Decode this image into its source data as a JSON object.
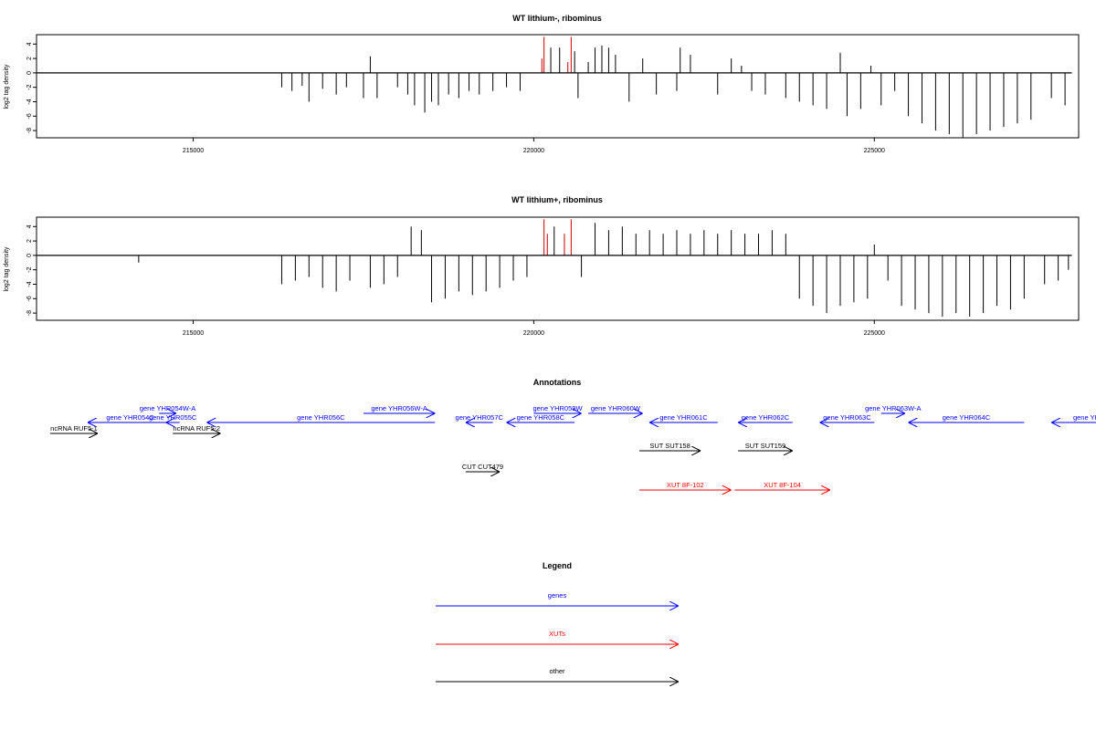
{
  "chart_data": [
    {
      "type": "bar",
      "title": "WT lithium-, ribominus",
      "ylabel": "log2 tag density",
      "xlabel": "",
      "xlim": [
        212700,
        228000
      ],
      "ylim": [
        -9,
        5.3
      ],
      "x_ticks": [
        215000,
        220000,
        225000
      ],
      "x_tick_labels": [
        "215000",
        "220000",
        "225000"
      ],
      "y_ticks": [
        4,
        2,
        0,
        -2,
        -4,
        -6,
        -8
      ],
      "y_tick_labels": [
        "4",
        "2",
        "0",
        "-2",
        "-4",
        "-6",
        "-8"
      ],
      "baseline": {
        "x": [
          212700,
          227900
        ],
        "y": 0
      },
      "highlight_color": "#d62728",
      "highlight_bars": [
        {
          "x": 220150,
          "y": 5.0
        },
        {
          "x": 220550,
          "y": 5.0
        },
        {
          "x": 220120,
          "y": 2.0
        },
        {
          "x": 220500,
          "y": 1.5
        }
      ],
      "bars": [
        {
          "x": 216300,
          "y": -2.0
        },
        {
          "x": 216450,
          "y": -2.5
        },
        {
          "x": 216600,
          "y": -1.8
        },
        {
          "x": 216700,
          "y": -4.0
        },
        {
          "x": 216900,
          "y": -2.2
        },
        {
          "x": 217100,
          "y": -3.0
        },
        {
          "x": 217250,
          "y": -2.0
        },
        {
          "x": 217500,
          "y": -3.5
        },
        {
          "x": 217600,
          "y": 2.3
        },
        {
          "x": 217700,
          "y": -3.5
        },
        {
          "x": 218000,
          "y": -2.0
        },
        {
          "x": 218150,
          "y": -3.0
        },
        {
          "x": 218250,
          "y": -4.5
        },
        {
          "x": 218400,
          "y": -5.5
        },
        {
          "x": 218500,
          "y": -4.0
        },
        {
          "x": 218600,
          "y": -4.5
        },
        {
          "x": 218750,
          "y": -3.0
        },
        {
          "x": 218900,
          "y": -3.5
        },
        {
          "x": 219050,
          "y": -2.5
        },
        {
          "x": 219200,
          "y": -3.0
        },
        {
          "x": 219400,
          "y": -2.5
        },
        {
          "x": 219600,
          "y": -2.0
        },
        {
          "x": 219800,
          "y": -2.5
        },
        {
          "x": 220250,
          "y": 3.5
        },
        {
          "x": 220380,
          "y": 3.5
        },
        {
          "x": 220600,
          "y": 3.0
        },
        {
          "x": 220650,
          "y": -3.5
        },
        {
          "x": 220800,
          "y": 1.5
        },
        {
          "x": 220900,
          "y": 3.5
        },
        {
          "x": 221000,
          "y": 3.8
        },
        {
          "x": 221100,
          "y": 3.5
        },
        {
          "x": 221200,
          "y": 2.5
        },
        {
          "x": 221400,
          "y": -4.0
        },
        {
          "x": 221600,
          "y": 2.0
        },
        {
          "x": 221800,
          "y": -3.0
        },
        {
          "x": 222100,
          "y": -2.5
        },
        {
          "x": 222150,
          "y": 3.5
        },
        {
          "x": 222300,
          "y": 2.5
        },
        {
          "x": 222700,
          "y": -3.0
        },
        {
          "x": 222900,
          "y": 2.0
        },
        {
          "x": 223050,
          "y": 1.0
        },
        {
          "x": 223200,
          "y": -2.5
        },
        {
          "x": 223400,
          "y": -3.0
        },
        {
          "x": 223700,
          "y": -3.5
        },
        {
          "x": 223900,
          "y": -4.0
        },
        {
          "x": 224100,
          "y": -4.5
        },
        {
          "x": 224300,
          "y": -5.0
        },
        {
          "x": 224500,
          "y": 2.8
        },
        {
          "x": 224600,
          "y": -6.0
        },
        {
          "x": 224800,
          "y": -5.0
        },
        {
          "x": 224950,
          "y": 1.0
        },
        {
          "x": 225100,
          "y": -4.5
        },
        {
          "x": 225300,
          "y": -2.5
        },
        {
          "x": 225500,
          "y": -6.0
        },
        {
          "x": 225700,
          "y": -7.0
        },
        {
          "x": 225900,
          "y": -8.0
        },
        {
          "x": 226100,
          "y": -8.5
        },
        {
          "x": 226300,
          "y": -9.0
        },
        {
          "x": 226500,
          "y": -8.5
        },
        {
          "x": 226700,
          "y": -8.0
        },
        {
          "x": 226900,
          "y": -7.5
        },
        {
          "x": 227100,
          "y": -7.0
        },
        {
          "x": 227300,
          "y": -6.5
        },
        {
          "x": 227600,
          "y": -3.5
        },
        {
          "x": 227800,
          "y": -4.5
        }
      ]
    },
    {
      "type": "bar",
      "title": "WT lithium+, ribominus",
      "ylabel": "log2 tag density",
      "xlabel": "",
      "xlim": [
        212700,
        228000
      ],
      "ylim": [
        -9,
        5.3
      ],
      "x_ticks": [
        215000,
        220000,
        225000
      ],
      "x_tick_labels": [
        "215000",
        "220000",
        "225000"
      ],
      "y_ticks": [
        4,
        2,
        0,
        -2,
        -4,
        -6,
        -8
      ],
      "y_tick_labels": [
        "4",
        "2",
        "0",
        "-2",
        "-4",
        "-6",
        "-8"
      ],
      "baseline": {
        "x": [
          212700,
          227900
        ],
        "y": 0
      },
      "highlight_color": "#d62728",
      "highlight_bars": [
        {
          "x": 220150,
          "y": 5.0
        },
        {
          "x": 220550,
          "y": 5.0
        },
        {
          "x": 220200,
          "y": 3.0
        },
        {
          "x": 220450,
          "y": 3.0
        }
      ],
      "bars": [
        {
          "x": 214200,
          "y": -1.0
        },
        {
          "x": 216300,
          "y": -4.0
        },
        {
          "x": 216500,
          "y": -3.5
        },
        {
          "x": 216700,
          "y": -3.0
        },
        {
          "x": 216900,
          "y": -4.5
        },
        {
          "x": 217100,
          "y": -5.0
        },
        {
          "x": 217300,
          "y": -3.5
        },
        {
          "x": 217600,
          "y": -4.5
        },
        {
          "x": 217800,
          "y": -4.0
        },
        {
          "x": 218000,
          "y": -3.0
        },
        {
          "x": 218200,
          "y": 4.0
        },
        {
          "x": 218350,
          "y": 3.5
        },
        {
          "x": 218500,
          "y": -6.5
        },
        {
          "x": 218700,
          "y": -6.0
        },
        {
          "x": 218900,
          "y": -5.0
        },
        {
          "x": 219100,
          "y": -5.5
        },
        {
          "x": 219300,
          "y": -5.0
        },
        {
          "x": 219500,
          "y": -4.5
        },
        {
          "x": 219700,
          "y": -3.5
        },
        {
          "x": 219900,
          "y": -3.0
        },
        {
          "x": 220300,
          "y": 4.0
        },
        {
          "x": 220700,
          "y": -3.0
        },
        {
          "x": 220900,
          "y": 4.5
        },
        {
          "x": 221100,
          "y": 3.5
        },
        {
          "x": 221300,
          "y": 4.0
        },
        {
          "x": 221500,
          "y": 3.0
        },
        {
          "x": 221700,
          "y": 3.5
        },
        {
          "x": 221900,
          "y": 3.0
        },
        {
          "x": 222100,
          "y": 3.5
        },
        {
          "x": 222300,
          "y": 3.0
        },
        {
          "x": 222500,
          "y": 3.5
        },
        {
          "x": 222700,
          "y": 3.0
        },
        {
          "x": 222900,
          "y": 3.5
        },
        {
          "x": 223100,
          "y": 3.0
        },
        {
          "x": 223300,
          "y": 3.0
        },
        {
          "x": 223500,
          "y": 3.5
        },
        {
          "x": 223700,
          "y": 3.0
        },
        {
          "x": 223900,
          "y": -6.0
        },
        {
          "x": 224100,
          "y": -7.0
        },
        {
          "x": 224300,
          "y": -8.0
        },
        {
          "x": 224500,
          "y": -7.0
        },
        {
          "x": 224700,
          "y": -6.5
        },
        {
          "x": 224900,
          "y": -6.0
        },
        {
          "x": 225000,
          "y": 1.5
        },
        {
          "x": 225200,
          "y": -3.5
        },
        {
          "x": 225400,
          "y": -7.0
        },
        {
          "x": 225600,
          "y": -7.5
        },
        {
          "x": 225800,
          "y": -8.0
        },
        {
          "x": 226000,
          "y": -8.5
        },
        {
          "x": 226200,
          "y": -8.0
        },
        {
          "x": 226400,
          "y": -8.5
        },
        {
          "x": 226600,
          "y": -8.0
        },
        {
          "x": 226800,
          "y": -7.0
        },
        {
          "x": 227000,
          "y": -7.5
        },
        {
          "x": 227200,
          "y": -6.0
        },
        {
          "x": 227500,
          "y": -4.0
        },
        {
          "x": 227700,
          "y": -3.5
        },
        {
          "x": 227850,
          "y": -2.0
        }
      ]
    }
  ],
  "annotations": {
    "title": "Annotations",
    "colors": {
      "gene": "#0000ff",
      "xut": "#ff0000",
      "other": "#000000"
    },
    "features": [
      {
        "label": "ncRNA RUF5-1",
        "kind": "other",
        "dir": "right",
        "start": 212900,
        "end": 213600,
        "row": 2
      },
      {
        "label": "gene YHR054C",
        "kind": "gene",
        "dir": "left",
        "start": 213450,
        "end": 214700,
        "row": 1
      },
      {
        "label": "gene YHR054W-A",
        "kind": "gene",
        "dir": "right",
        "start": 214500,
        "end": 214750,
        "row": 0
      },
      {
        "label": "gene YHR055C",
        "kind": "gene",
        "dir": "left",
        "start": 214600,
        "end": 214800,
        "row": 1
      },
      {
        "label": "ncRNA RUF5-2",
        "kind": "other",
        "dir": "right",
        "start": 214700,
        "end": 215400,
        "row": 2
      },
      {
        "label": "gene YHR056C",
        "kind": "gene",
        "dir": "left",
        "start": 215200,
        "end": 218550,
        "row": 1
      },
      {
        "label": "gene YHR056W-A",
        "kind": "gene",
        "dir": "right",
        "start": 217500,
        "end": 218550,
        "row": 0
      },
      {
        "label": "gene YHR057C",
        "kind": "gene",
        "dir": "left",
        "start": 219000,
        "end": 219400,
        "row": 1
      },
      {
        "label": "gene YHR058C",
        "kind": "gene",
        "dir": "left",
        "start": 219600,
        "end": 220600,
        "row": 1
      },
      {
        "label": "gene YHR059W",
        "kind": "gene",
        "dir": "right",
        "start": 220000,
        "end": 220700,
        "row": 0
      },
      {
        "label": "gene YHR060W",
        "kind": "gene",
        "dir": "right",
        "start": 220800,
        "end": 221600,
        "row": 0
      },
      {
        "label": "gene YHR061C",
        "kind": "gene",
        "dir": "left",
        "start": 221700,
        "end": 222700,
        "row": 1
      },
      {
        "label": "gene YHR062C",
        "kind": "gene",
        "dir": "left",
        "start": 223000,
        "end": 223800,
        "row": 1
      },
      {
        "label": "gene YHR063C",
        "kind": "gene",
        "dir": "left",
        "start": 224200,
        "end": 225000,
        "row": 1
      },
      {
        "label": "gene YHR063W-A",
        "kind": "gene",
        "dir": "right",
        "start": 225100,
        "end": 225450,
        "row": 0
      },
      {
        "label": "gene YHR064C",
        "kind": "gene",
        "dir": "left",
        "start": 225500,
        "end": 227200,
        "row": 1
      },
      {
        "label": "gene YHR",
        "kind": "gene",
        "dir": "left",
        "start": 227600,
        "end": 228700,
        "row": 1
      },
      {
        "label": "SUT SUT158",
        "kind": "other",
        "dir": "right",
        "start": 221550,
        "end": 222450,
        "row": 3
      },
      {
        "label": "SUT SUT159",
        "kind": "other",
        "dir": "right",
        "start": 223000,
        "end": 223800,
        "row": 3
      },
      {
        "label": "CUT CUT479",
        "kind": "other",
        "dir": "right",
        "start": 219000,
        "end": 219500,
        "row": 4
      },
      {
        "label": "XUT 8F-102",
        "kind": "xut",
        "dir": "right",
        "start": 221550,
        "end": 222900,
        "row": 5
      },
      {
        "label": "XUT 8F-104",
        "kind": "xut",
        "dir": "right",
        "start": 222950,
        "end": 224350,
        "row": 5
      }
    ]
  },
  "legend": {
    "title": "Legend",
    "items": [
      {
        "label": "genes",
        "color": "#0000ff"
      },
      {
        "label": "XUTs",
        "color": "#ff0000"
      },
      {
        "label": "other",
        "color": "#000000"
      }
    ]
  }
}
